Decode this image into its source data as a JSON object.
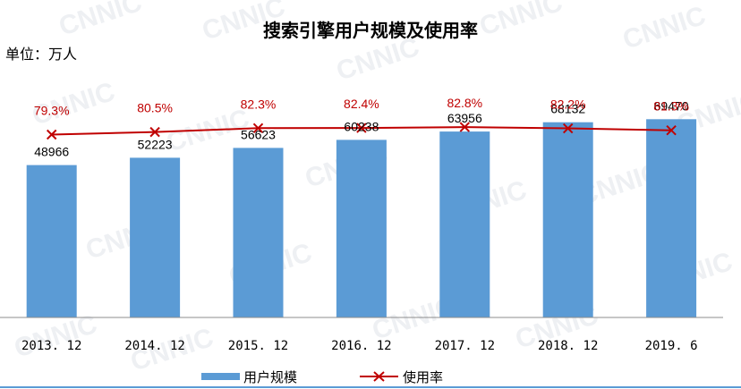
{
  "chart_data": {
    "type": "bar",
    "title": "搜索引擎用户规模及使用率",
    "unit_label": "单位：万人",
    "categories": [
      "2013. 12",
      "2014. 12",
      "2015. 12",
      "2016. 12",
      "2017. 12",
      "2018. 12",
      "2019. 6"
    ],
    "series": [
      {
        "name": "用户规模",
        "kind": "bar",
        "color": "#5b9bd5",
        "values": [
          48966,
          52223,
          56623,
          60238,
          63956,
          68132,
          69470
        ],
        "labels": [
          "48966",
          "52223",
          "56623",
          "60238",
          "63956",
          "68132",
          "69470"
        ]
      },
      {
        "name": "使用率",
        "kind": "line",
        "color": "#c00000",
        "marker": "x",
        "values": [
          79.3,
          80.5,
          82.3,
          82.4,
          82.8,
          82.2,
          81.3
        ],
        "labels": [
          "79.3%",
          "80.5%",
          "82.3%",
          "82.4%",
          "82.8%",
          "82.2%",
          "81.3%"
        ]
      }
    ],
    "legend": [
      "用户规模",
      "使用率"
    ],
    "legend_position": "bottom",
    "watermark": "CNNIC",
    "grid": false
  }
}
